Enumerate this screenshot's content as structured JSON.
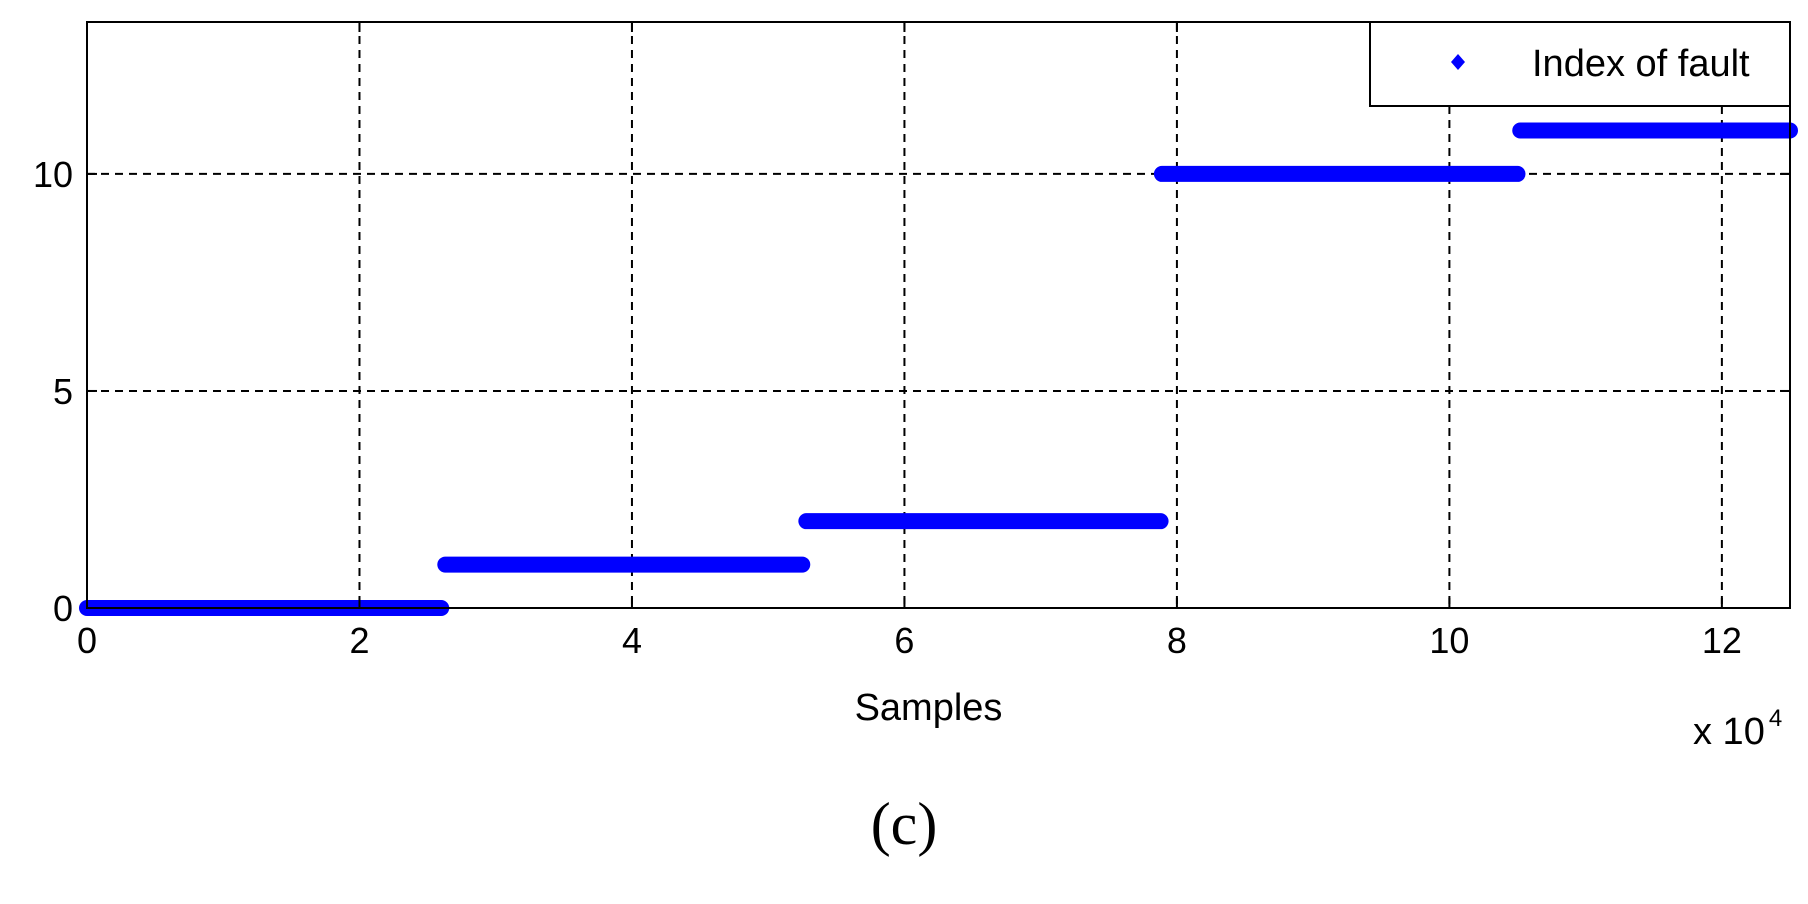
{
  "chart_data": {
    "type": "scatter",
    "xlabel": "Samples",
    "x_multiplier": "x 10",
    "x_exponent": "4",
    "ylabel": "",
    "xlim": [
      0,
      125000
    ],
    "ylim": [
      0,
      13.5
    ],
    "x_ticks": [
      0,
      20000,
      40000,
      60000,
      80000,
      100000,
      120000
    ],
    "x_tick_labels": [
      "0",
      "2",
      "4",
      "6",
      "8",
      "10",
      "12"
    ],
    "y_ticks": [
      0,
      5,
      10
    ],
    "y_tick_labels": [
      "0",
      "5",
      "10"
    ],
    "grid": true,
    "legend_position": "top-right",
    "series": [
      {
        "name": "Index of fault",
        "color": "#0000ff",
        "marker": "point",
        "segments": [
          {
            "x_start": 0,
            "x_end": 26000,
            "y": 0
          },
          {
            "x_start": 26300,
            "x_end": 52500,
            "y": 1
          },
          {
            "x_start": 52800,
            "x_end": 78800,
            "y": 2
          },
          {
            "x_start": 78900,
            "x_end": 105000,
            "y": 10
          },
          {
            "x_start": 105200,
            "x_end": 125000,
            "y": 11
          }
        ]
      }
    ]
  },
  "panel_label": "(c)"
}
